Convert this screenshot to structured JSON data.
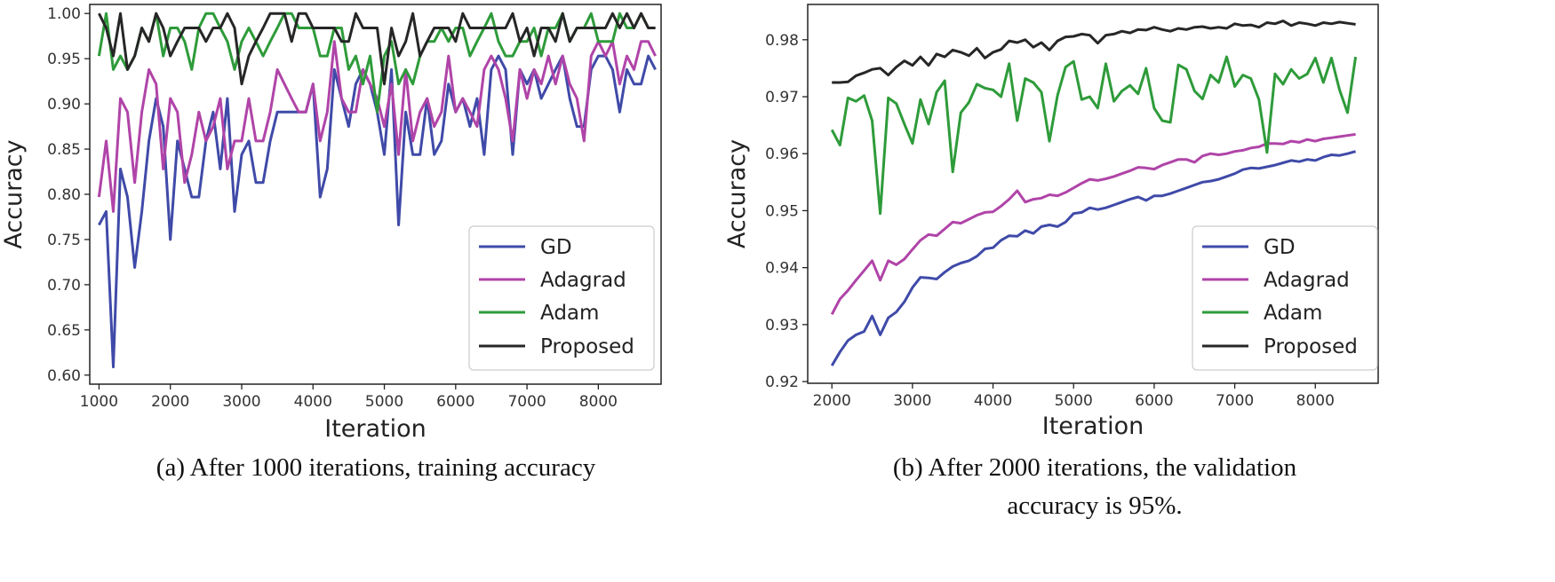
{
  "chart_data": [
    {
      "type": "line",
      "xlabel": "Iteration",
      "ylabel": "Accuracy",
      "xlim": [
        870,
        8880
      ],
      "ylim": [
        0.59,
        1.01
      ],
      "xticks": [
        1000,
        2000,
        3000,
        4000,
        5000,
        6000,
        7000,
        8000
      ],
      "yticks": [
        0.6,
        0.65,
        0.7,
        0.75,
        0.8,
        0.85,
        0.9,
        0.95,
        1.0
      ],
      "ytick_format": 2,
      "legend_position": "lower-right",
      "caption": [
        "(a) After 1000 iterations, training accuracy"
      ],
      "x_start": 1000,
      "x_step": 100,
      "series": [
        {
          "name": "GD",
          "color": "#3f4aa8",
          "values": [
            0.766,
            0.781,
            0.609,
            0.828,
            0.797,
            0.719,
            0.781,
            0.859,
            0.906,
            0.875,
            0.75,
            0.859,
            0.828,
            0.797,
            0.797,
            0.859,
            0.891,
            0.828,
            0.906,
            0.781,
            0.844,
            0.859,
            0.813,
            0.813,
            0.859,
            0.891,
            0.891,
            0.891,
            0.891,
            0.891,
            0.922,
            0.797,
            0.828,
            0.938,
            0.906,
            0.875,
            0.922,
            0.938,
            0.922,
            0.891,
            0.844,
            0.938,
            0.766,
            0.891,
            0.844,
            0.844,
            0.906,
            0.844,
            0.859,
            0.922,
            0.891,
            0.906,
            0.875,
            0.906,
            0.844,
            0.938,
            0.953,
            0.938,
            0.844,
            0.938,
            0.922,
            0.938,
            0.906,
            0.922,
            0.938,
            0.953,
            0.906,
            0.875,
            0.875,
            0.938,
            0.953,
            0.953,
            0.938,
            0.891,
            0.938,
            0.922,
            0.922,
            0.953,
            0.938
          ]
        },
        {
          "name": "Adagrad",
          "color": "#b044a8",
          "values": [
            0.797,
            0.859,
            0.781,
            0.906,
            0.891,
            0.813,
            0.891,
            0.938,
            0.922,
            0.828,
            0.906,
            0.891,
            0.813,
            0.844,
            0.891,
            0.859,
            0.875,
            0.906,
            0.828,
            0.859,
            0.859,
            0.906,
            0.859,
            0.859,
            0.891,
            0.938,
            0.922,
            0.906,
            0.891,
            0.891,
            0.922,
            0.859,
            0.891,
            0.969,
            0.906,
            0.891,
            0.891,
            0.938,
            0.922,
            0.906,
            0.875,
            0.922,
            0.844,
            0.938,
            0.859,
            0.891,
            0.906,
            0.875,
            0.891,
            0.953,
            0.891,
            0.906,
            0.891,
            0.875,
            0.938,
            0.953,
            0.938,
            0.906,
            0.859,
            0.938,
            0.906,
            0.938,
            0.922,
            0.953,
            0.922,
            0.953,
            0.922,
            0.906,
            0.859,
            0.953,
            0.969,
            0.953,
            0.969,
            0.922,
            0.953,
            0.938,
            0.969,
            0.969,
            0.953
          ]
        },
        {
          "name": "Adam",
          "color": "#2e9b3a",
          "values": [
            0.953,
            1.0,
            0.938,
            0.953,
            0.938,
            0.953,
            0.984,
            0.969,
            1.0,
            0.953,
            0.984,
            0.984,
            0.969,
            0.938,
            0.984,
            1.0,
            1.0,
            0.984,
            0.969,
            0.938,
            0.969,
            0.984,
            0.969,
            0.953,
            0.969,
            0.984,
            1.0,
            1.0,
            0.984,
            0.984,
            0.984,
            0.953,
            0.953,
            0.984,
            0.984,
            0.938,
            0.953,
            0.922,
            0.953,
            0.891,
            0.953,
            0.969,
            0.922,
            0.938,
            0.922,
            0.953,
            0.969,
            0.969,
            0.984,
            0.969,
            0.984,
            0.984,
            0.953,
            0.969,
            0.984,
            1.0,
            0.969,
            0.953,
            0.953,
            0.969,
            0.969,
            0.984,
            0.953,
            0.984,
            0.984,
            1.0,
            0.969,
            0.984,
            0.984,
            1.0,
            0.969,
            0.969,
            0.969,
            1.0,
            0.984,
            0.984,
            1.0,
            0.984,
            0.984
          ]
        },
        {
          "name": "Proposed",
          "color": "#262626",
          "values": [
            1.0,
            0.984,
            0.953,
            1.0,
            0.938,
            0.953,
            0.984,
            0.969,
            1.0,
            0.984,
            0.953,
            0.969,
            0.984,
            0.984,
            0.984,
            0.969,
            0.984,
            0.984,
            1.0,
            0.984,
            0.922,
            0.953,
            0.969,
            0.984,
            1.0,
            1.0,
            1.0,
            0.969,
            1.0,
            1.0,
            0.984,
            0.984,
            0.984,
            0.984,
            0.969,
            0.969,
            1.0,
            0.984,
            0.984,
            0.984,
            0.922,
            0.984,
            0.953,
            0.969,
            1.0,
            0.953,
            0.969,
            0.984,
            0.984,
            0.984,
            0.969,
            1.0,
            0.984,
            0.984,
            0.984,
            0.984,
            0.984,
            0.984,
            1.0,
            0.969,
            0.984,
            0.953,
            0.984,
            0.984,
            0.969,
            1.0,
            0.969,
            0.984,
            0.984,
            0.984,
            0.984,
            0.984,
            1.0,
            0.984,
            1.0,
            0.984,
            1.0,
            0.984,
            0.984
          ]
        }
      ]
    },
    {
      "type": "line",
      "xlabel": "Iteration",
      "ylabel": "Accuracy",
      "xlim": [
        1700,
        8780
      ],
      "ylim": [
        0.9197,
        0.9862
      ],
      "xticks": [
        2000,
        3000,
        4000,
        5000,
        6000,
        7000,
        8000
      ],
      "yticks": [
        0.92,
        0.93,
        0.94,
        0.95,
        0.96,
        0.97,
        0.98
      ],
      "ytick_format": 2,
      "legend_position": "lower-right",
      "caption": [
        "(b) After 2000 iterations, the validation",
        "accuracy is 95%."
      ],
      "x_start": 2000,
      "x_step": 100,
      "series": [
        {
          "name": "GD",
          "color": "#3f4aa8",
          "values": [
            0.9228,
            0.9252,
            0.9272,
            0.9282,
            0.9288,
            0.9315,
            0.9282,
            0.9312,
            0.9322,
            0.934,
            0.9365,
            0.9383,
            0.9382,
            0.938,
            0.9392,
            0.9402,
            0.9408,
            0.9412,
            0.942,
            0.9433,
            0.9435,
            0.9448,
            0.9456,
            0.9455,
            0.9465,
            0.946,
            0.9472,
            0.9475,
            0.9472,
            0.948,
            0.9495,
            0.9497,
            0.9505,
            0.9502,
            0.9505,
            0.951,
            0.9515,
            0.952,
            0.9524,
            0.9518,
            0.9526,
            0.9526,
            0.953,
            0.9535,
            0.954,
            0.9545,
            0.955,
            0.9552,
            0.9555,
            0.956,
            0.9565,
            0.9572,
            0.9575,
            0.9574,
            0.9577,
            0.958,
            0.9584,
            0.9588,
            0.9586,
            0.959,
            0.9588,
            0.9594,
            0.9598,
            0.9597,
            0.96,
            0.9604
          ]
        },
        {
          "name": "Adagrad",
          "color": "#b044a8",
          "values": [
            0.9318,
            0.9345,
            0.936,
            0.9378,
            0.9395,
            0.9412,
            0.9378,
            0.9412,
            0.9405,
            0.9415,
            0.9432,
            0.9448,
            0.9458,
            0.9456,
            0.9468,
            0.948,
            0.9478,
            0.9485,
            0.9492,
            0.9497,
            0.9498,
            0.9508,
            0.952,
            0.9535,
            0.9515,
            0.952,
            0.9522,
            0.9528,
            0.9526,
            0.9532,
            0.954,
            0.9548,
            0.9555,
            0.9553,
            0.9556,
            0.956,
            0.9565,
            0.957,
            0.9576,
            0.9575,
            0.9573,
            0.958,
            0.9585,
            0.959,
            0.959,
            0.9585,
            0.9596,
            0.96,
            0.9598,
            0.96,
            0.9604,
            0.9606,
            0.961,
            0.9612,
            0.9618,
            0.9618,
            0.9617,
            0.9622,
            0.962,
            0.9625,
            0.9622,
            0.9626,
            0.9628,
            0.963,
            0.9632,
            0.9634
          ]
        },
        {
          "name": "Adam",
          "color": "#2e9b3a",
          "values": [
            0.9642,
            0.9615,
            0.9698,
            0.9692,
            0.9702,
            0.9658,
            0.9495,
            0.9698,
            0.9688,
            0.9652,
            0.9618,
            0.9695,
            0.9652,
            0.9708,
            0.9728,
            0.9568,
            0.9672,
            0.969,
            0.9722,
            0.9715,
            0.9712,
            0.97,
            0.9758,
            0.9658,
            0.9732,
            0.9725,
            0.9708,
            0.9622,
            0.9702,
            0.9752,
            0.9762,
            0.9695,
            0.97,
            0.968,
            0.9758,
            0.9692,
            0.971,
            0.972,
            0.9705,
            0.975,
            0.968,
            0.9658,
            0.9655,
            0.9756,
            0.9748,
            0.971,
            0.9696,
            0.9738,
            0.9725,
            0.977,
            0.9718,
            0.9738,
            0.9732,
            0.9695,
            0.9602,
            0.974,
            0.9722,
            0.9748,
            0.9732,
            0.974,
            0.9768,
            0.9725,
            0.9768,
            0.9712,
            0.9672,
            0.977
          ]
        },
        {
          "name": "Proposed",
          "color": "#262626",
          "values": [
            0.9725,
            0.9725,
            0.9726,
            0.9737,
            0.9742,
            0.9748,
            0.975,
            0.9738,
            0.9752,
            0.9763,
            0.9755,
            0.977,
            0.9755,
            0.9775,
            0.977,
            0.9782,
            0.9778,
            0.9772,
            0.9785,
            0.9768,
            0.9778,
            0.9783,
            0.9798,
            0.9795,
            0.98,
            0.9787,
            0.9795,
            0.9782,
            0.9798,
            0.9805,
            0.9806,
            0.981,
            0.9808,
            0.9794,
            0.9808,
            0.981,
            0.9815,
            0.9812,
            0.9818,
            0.9817,
            0.9822,
            0.9818,
            0.9815,
            0.982,
            0.9818,
            0.9822,
            0.9823,
            0.982,
            0.9822,
            0.982,
            0.9828,
            0.9825,
            0.9826,
            0.9822,
            0.983,
            0.9828,
            0.9833,
            0.9825,
            0.983,
            0.9828,
            0.9825,
            0.983,
            0.9828,
            0.9831,
            0.9829,
            0.9827
          ]
        }
      ]
    }
  ]
}
